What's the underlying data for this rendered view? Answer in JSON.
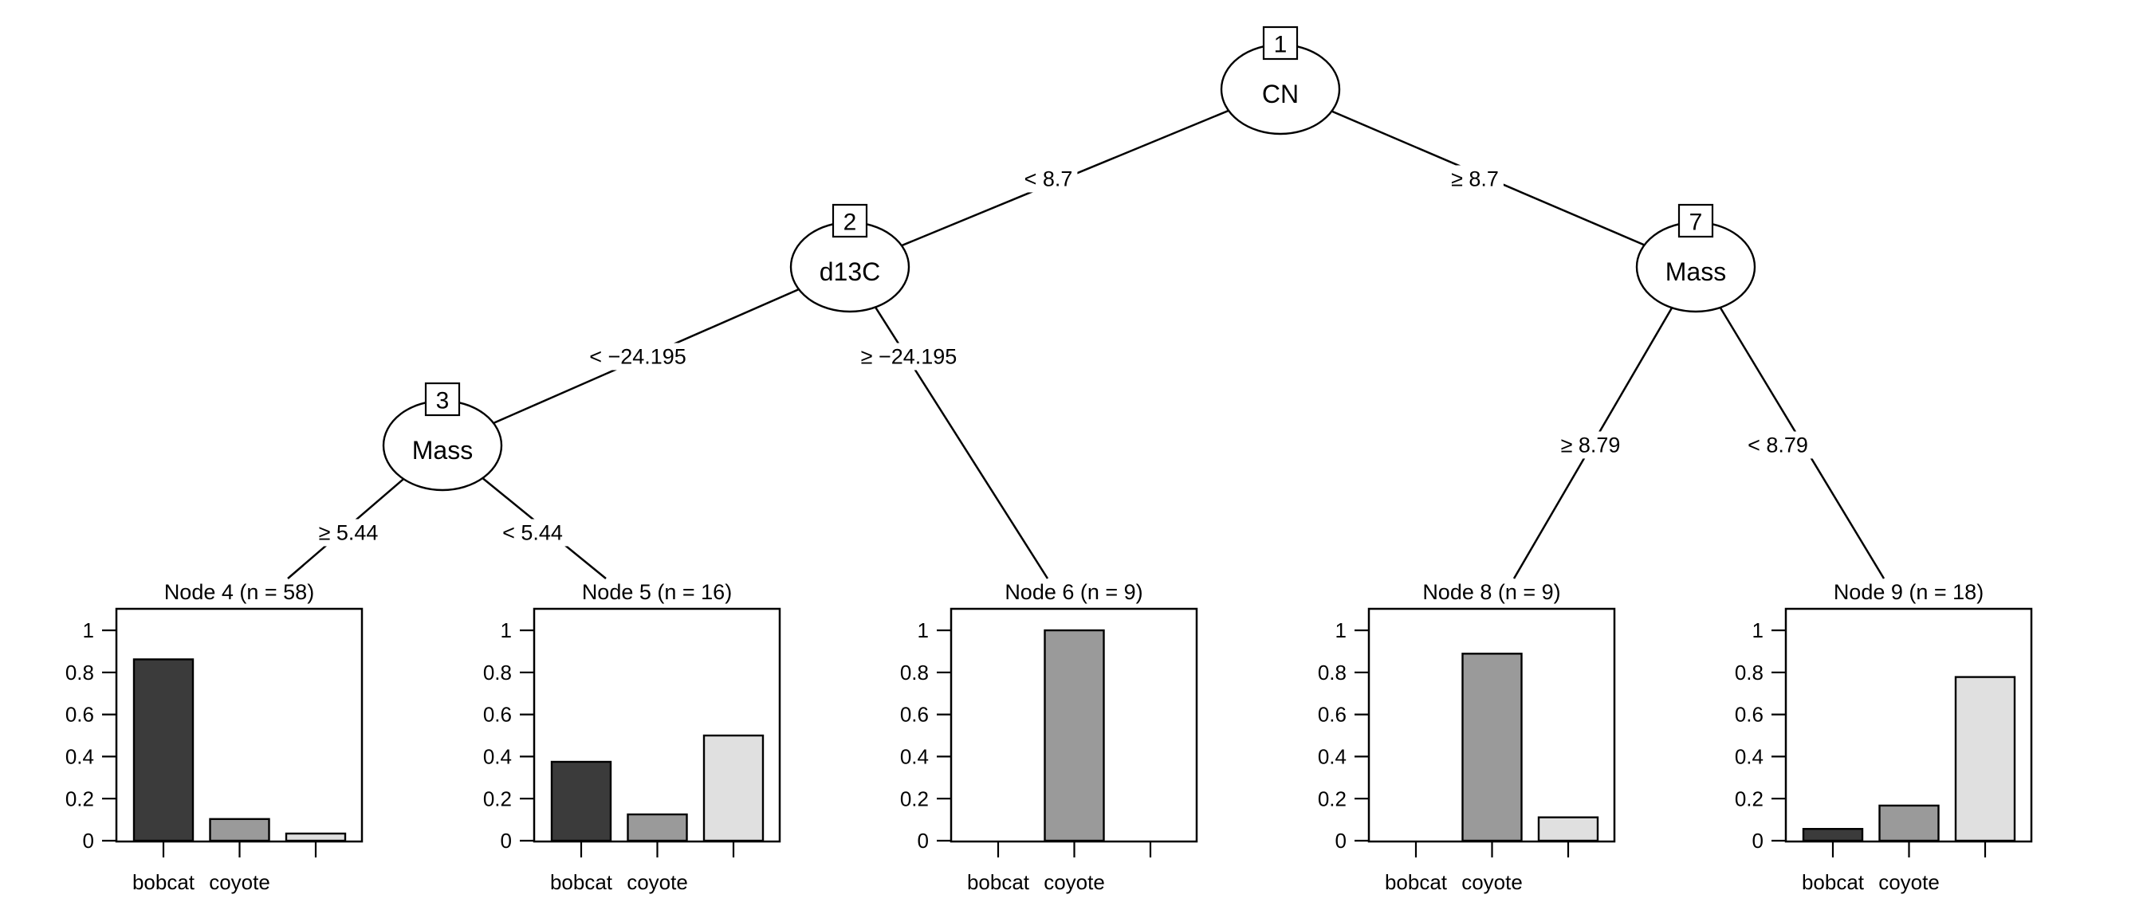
{
  "figure": {
    "type": "conditional-inference-tree-plot",
    "background": "#ffffff",
    "line_color": "#000000",
    "text_color": "#000000"
  },
  "tree": {
    "nodes": [
      {
        "id": "1",
        "label": "CN"
      },
      {
        "id": "2",
        "label": "d13C"
      },
      {
        "id": "3",
        "label": "Mass"
      },
      {
        "id": "7",
        "label": "Mass"
      }
    ],
    "edges": [
      {
        "from": "1",
        "to": "2",
        "label": "< 8.7"
      },
      {
        "from": "1",
        "to": "7",
        "label": "≥ 8.7"
      },
      {
        "from": "2",
        "to": "3",
        "label": "< −24.195"
      },
      {
        "from": "2",
        "to": "Node 6",
        "label": "≥ −24.195"
      },
      {
        "from": "3",
        "to": "Node 4",
        "label": "≥ 5.44"
      },
      {
        "from": "3",
        "to": "Node 5",
        "label": "< 5.44"
      },
      {
        "from": "7",
        "to": "Node 8",
        "label": "≥ 8.79"
      },
      {
        "from": "7",
        "to": "Node 9",
        "label": "< 8.79"
      }
    ]
  },
  "chart_data": {
    "type": "bar",
    "categories": [
      "bobcat",
      "coyote",
      ""
    ],
    "yticks": [
      0,
      0.2,
      0.4,
      0.6,
      0.8,
      1
    ],
    "ylim": [
      0,
      1.1
    ],
    "grid": false,
    "bar_colors": [
      "#3b3b3b",
      "#9a9a9a",
      "#e0e0e0"
    ],
    "panels": [
      {
        "title": "Node 4 (n = 58)",
        "n": 58,
        "values": [
          0.862,
          0.103,
          0.034
        ]
      },
      {
        "title": "Node 5 (n = 16)",
        "n": 16,
        "values": [
          0.375,
          0.125,
          0.5
        ]
      },
      {
        "title": "Node 6 (n = 9)",
        "n": 9,
        "values": [
          0,
          1,
          0
        ]
      },
      {
        "title": "Node 8 (n = 9)",
        "n": 9,
        "values": [
          0,
          0.889,
          0.111
        ]
      },
      {
        "title": "Node 9 (n = 18)",
        "n": 18,
        "values": [
          0.056,
          0.167,
          0.778
        ]
      }
    ]
  }
}
